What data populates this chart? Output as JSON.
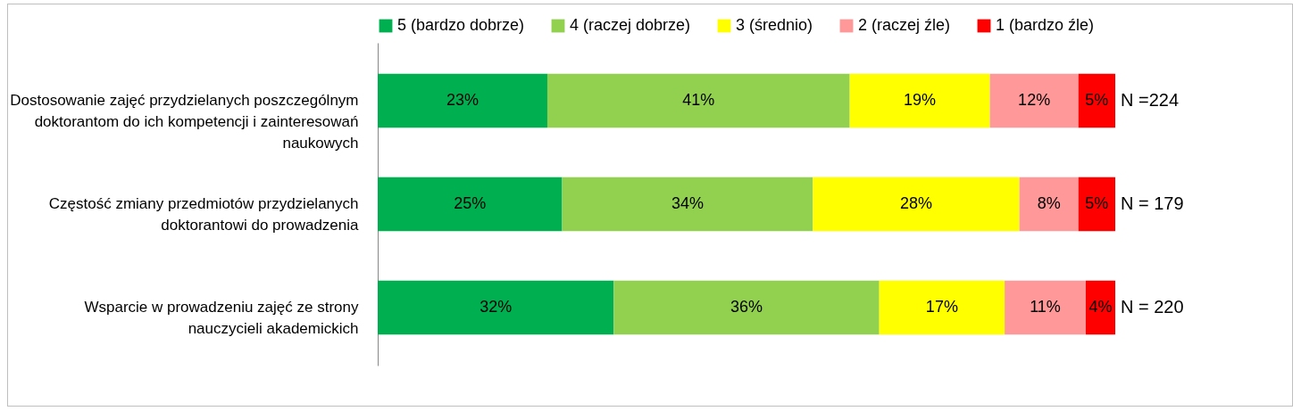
{
  "chart_data": {
    "type": "bar",
    "orientation": "horizontal",
    "stacked": true,
    "legend": "top",
    "tick_labels": "y",
    "xlim": [
      0,
      100
    ],
    "categories": [
      "Dostosowanie zajęć przydzielanych poszczególnym doktorantom do ich kompetencji i zainteresowań naukowych",
      "Częstość zmiany przedmiotów przydzielanych doktorantowi do prowadzenia",
      "Wsparcie w prowadzeniu zajęć ze strony nauczycieli akademickich"
    ],
    "series": [
      {
        "name": "5 (bardzo dobrze)",
        "color": "#00b050",
        "values": [
          23,
          25,
          32
        ],
        "value_labels": [
          "23%",
          "25%",
          "32%"
        ]
      },
      {
        "name": "4 (raczej dobrze)",
        "color": "#92d050",
        "values": [
          41,
          34,
          36
        ],
        "value_labels": [
          "41%",
          "34%",
          "36%"
        ]
      },
      {
        "name": "3 (średnio)",
        "color": "#ffff00",
        "values": [
          19,
          28,
          17
        ],
        "value_labels": [
          "19%",
          "28%",
          "17%"
        ]
      },
      {
        "name": "2 (raczej źle)",
        "color": "#ff9999",
        "values": [
          12,
          8,
          11
        ],
        "value_labels": [
          "12%",
          "8%",
          "11%"
        ]
      },
      {
        "name": "1 (bardzo źle)",
        "color": "#ff0000",
        "values": [
          5,
          5,
          4
        ],
        "value_labels": [
          "5%",
          "5%",
          "4%"
        ]
      }
    ],
    "annotations": [
      "N =224",
      "N = 179",
      "N = 220"
    ]
  }
}
